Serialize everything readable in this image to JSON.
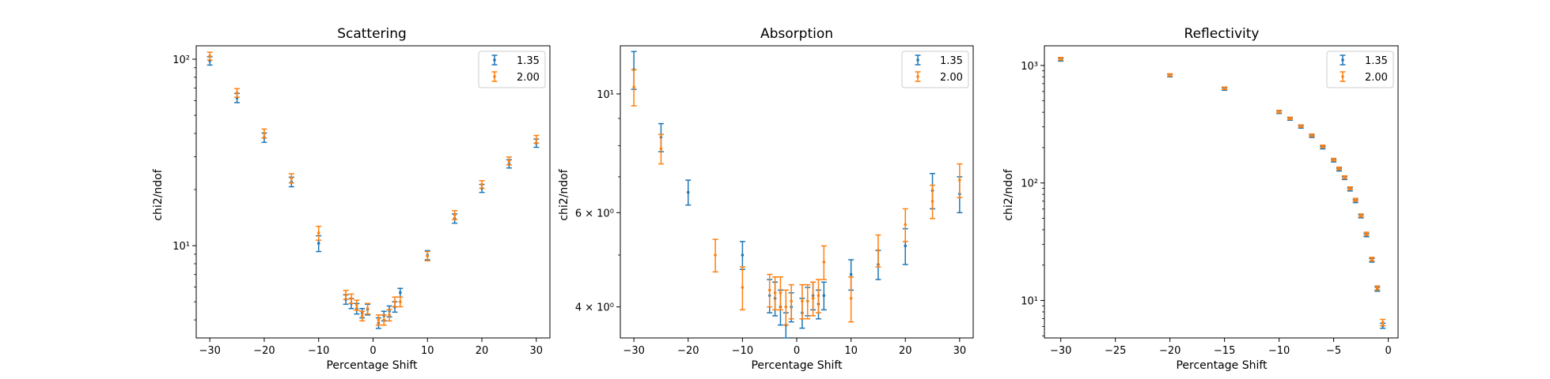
{
  "figure": {
    "colors": {
      "s135": "#1f77b4",
      "s200": "#ff7f0e"
    }
  },
  "chart_data": [
    {
      "type": "scatter",
      "title": "Scattering",
      "xlabel": "Percentage Shift",
      "ylabel": "chi2/ndof",
      "yscale": "log",
      "xlim": [
        -32.5,
        32.5
      ],
      "ylim": [
        3.2,
        118
      ],
      "xticks": [
        -30,
        -20,
        -10,
        0,
        10,
        20,
        30
      ],
      "xtick_labels": [
        "−30",
        "−20",
        "−10",
        "0",
        "10",
        "20",
        "30"
      ],
      "yticks": [
        10,
        100
      ],
      "ytick_labels": [
        "10¹",
        "10²"
      ],
      "legend": {
        "position": "upper right",
        "entries": [
          "1.35",
          "2.00"
        ]
      },
      "series": [
        {
          "name": "1.35",
          "color": "#1f77b4",
          "x": [
            -30,
            -25,
            -20,
            -15,
            -10,
            -5,
            -4,
            -3,
            -2,
            -1,
            1,
            2,
            3,
            4,
            5,
            10,
            15,
            20,
            25,
            30
          ],
          "y": [
            98,
            62,
            38,
            22,
            10.3,
            5.15,
            4.9,
            4.6,
            4.35,
            4.55,
            3.85,
            4.2,
            4.45,
            4.7,
            5.6,
            8.9,
            14.0,
            20.3,
            27.5,
            35.5
          ],
          "yerr": [
            5,
            3.5,
            2.2,
            1.3,
            1.0,
            0.3,
            0.3,
            0.3,
            0.25,
            0.3,
            0.25,
            0.25,
            0.3,
            0.3,
            0.3,
            0.5,
            0.8,
            1.0,
            1.4,
            1.8
          ]
        },
        {
          "name": "2.00",
          "color": "#ff7f0e",
          "x": [
            -30,
            -25,
            -20,
            -15,
            -10,
            -5,
            -4,
            -3,
            -2,
            -1,
            1,
            2,
            3,
            4,
            5,
            10,
            15,
            20,
            25,
            30
          ],
          "y": [
            104,
            66,
            40,
            23,
            11.7,
            5.45,
            5.2,
            4.8,
            4.2,
            4.6,
            4.0,
            4.0,
            4.25,
            5.0,
            5.0,
            8.8,
            14.6,
            21.3,
            28.5,
            37.2
          ],
          "yerr": [
            5,
            3.5,
            2.2,
            1.3,
            1.0,
            0.3,
            0.3,
            0.3,
            0.25,
            0.3,
            0.25,
            0.25,
            0.3,
            0.3,
            0.3,
            0.5,
            0.8,
            1.0,
            1.4,
            1.8
          ]
        }
      ]
    },
    {
      "type": "scatter",
      "title": "Absorption",
      "xlabel": "Percentage Shift",
      "ylabel": "chi2/ndof",
      "yscale": "log",
      "xlim": [
        -32.5,
        32.5
      ],
      "ylim": [
        3.5,
        12.3
      ],
      "xticks": [
        -30,
        -20,
        -10,
        0,
        10,
        20,
        30
      ],
      "xtick_labels": [
        "−30",
        "−20",
        "−10",
        "0",
        "10",
        "20",
        "30"
      ],
      "yticks": [
        4,
        6,
        10
      ],
      "ytick_labels": [
        "4 × 10⁰",
        "6 × 10⁰",
        "10¹"
      ],
      "legend": {
        "position": "upper right",
        "entries": [
          "1.35",
          "2.00"
        ]
      },
      "series": [
        {
          "name": "1.35",
          "color": "#1f77b4",
          "x": [
            -30,
            -25,
            -20,
            -10,
            -5,
            -4,
            -3,
            -2,
            -1,
            1,
            2,
            3,
            4,
            5,
            10,
            15,
            20,
            25,
            30
          ],
          "y": [
            11.1,
            8.3,
            6.55,
            5.0,
            4.2,
            4.15,
            4.0,
            3.7,
            4.0,
            3.9,
            4.1,
            4.2,
            4.05,
            4.2,
            4.6,
            4.8,
            5.2,
            6.6,
            6.5
          ],
          "yerr": [
            0.9,
            0.5,
            0.35,
            0.3,
            0.3,
            0.3,
            0.3,
            0.2,
            0.25,
            0.25,
            0.25,
            0.25,
            0.25,
            0.25,
            0.3,
            0.3,
            0.4,
            0.5,
            0.5
          ]
        },
        {
          "name": "2.00",
          "color": "#ff7f0e",
          "x": [
            -30,
            -25,
            -15,
            -10,
            -5,
            -4,
            -3,
            -2,
            -1,
            1,
            2,
            3,
            4,
            5,
            10,
            15,
            20,
            25,
            30
          ],
          "y": [
            10.3,
            7.9,
            5.0,
            4.35,
            4.3,
            4.25,
            4.25,
            4.0,
            4.1,
            4.1,
            4.1,
            4.15,
            4.2,
            4.85,
            4.15,
            5.1,
            5.7,
            6.3,
            6.9
          ],
          "yerr": [
            0.8,
            0.5,
            0.35,
            0.4,
            0.3,
            0.3,
            0.3,
            0.3,
            0.3,
            0.3,
            0.3,
            0.3,
            0.3,
            0.35,
            0.4,
            0.35,
            0.4,
            0.45,
            0.5
          ]
        }
      ]
    },
    {
      "type": "scatter",
      "title": "Reflectivity",
      "xlabel": "Percentage Shift",
      "ylabel": "chi2/ndof",
      "yscale": "log",
      "xlim": [
        -31.5,
        0.9
      ],
      "ylim": [
        4.8,
        1470
      ],
      "xticks": [
        -30,
        -25,
        -20,
        -15,
        -10,
        -5,
        0
      ],
      "xtick_labels": [
        "−30",
        "−25",
        "−20",
        "−15",
        "−10",
        "−5",
        "0"
      ],
      "yticks": [
        10,
        100,
        1000
      ],
      "ytick_labels": [
        "10¹",
        "10²",
        "10³"
      ],
      "legend": {
        "position": "upper right",
        "entries": [
          "1.35",
          "2.00"
        ]
      },
      "series": [
        {
          "name": "1.35",
          "color": "#1f77b4",
          "x": [
            -30,
            -20,
            -15,
            -10,
            -9,
            -8,
            -7,
            -6,
            -5,
            -4.5,
            -4,
            -3.5,
            -3,
            -2.5,
            -2,
            -1.5,
            -1,
            -0.5
          ],
          "y": [
            1120,
            820,
            630,
            400,
            350,
            300,
            250,
            200,
            155,
            130,
            110,
            88,
            70,
            52,
            36,
            22,
            12.5,
            6.1
          ],
          "yerr": [
            30,
            20,
            15,
            10,
            8,
            7,
            6,
            5,
            4,
            3.5,
            3,
            2.5,
            2,
            1.5,
            1.1,
            0.8,
            0.5,
            0.3
          ]
        },
        {
          "name": "2.00",
          "color": "#ff7f0e",
          "x": [
            -30,
            -20,
            -15,
            -10,
            -9,
            -8,
            -7,
            -6,
            -5,
            -4.5,
            -4,
            -3.5,
            -3,
            -2.5,
            -2,
            -1.5,
            -1,
            -0.5
          ],
          "y": [
            1140,
            830,
            640,
            405,
            355,
            305,
            255,
            205,
            158,
            133,
            112,
            90,
            72,
            53,
            37,
            22.5,
            12.8,
            6.5
          ],
          "yerr": [
            30,
            20,
            15,
            10,
            8,
            7,
            6,
            5,
            4,
            3.5,
            3,
            2.5,
            2,
            1.5,
            1.1,
            0.8,
            0.5,
            0.4
          ]
        }
      ]
    }
  ]
}
